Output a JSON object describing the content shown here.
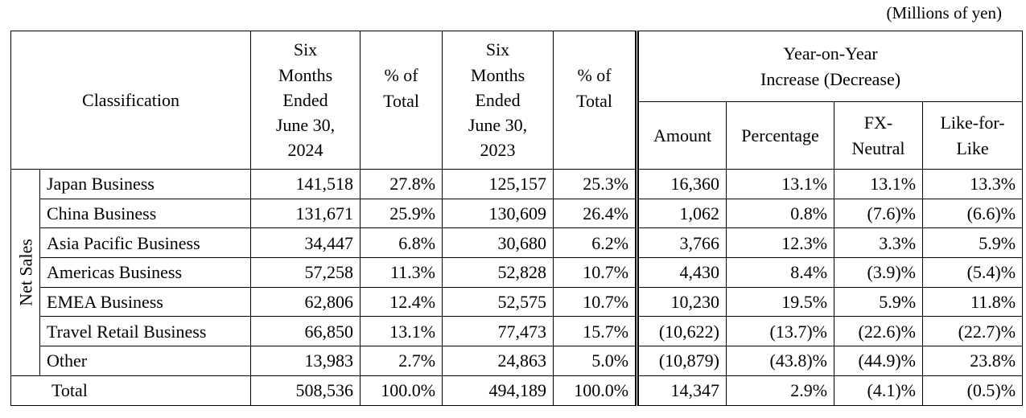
{
  "units": "(Millions of yen)",
  "header": {
    "classification": "Classification",
    "period_current": "Six Months Ended June 30, 2024",
    "period_current_lines": [
      "Six",
      "Months",
      "Ended",
      "June 30,",
      "2024"
    ],
    "pct_total_lines": [
      "% of",
      "Total"
    ],
    "period_prior_lines": [
      "Six",
      "Months",
      "Ended",
      "June 30,",
      "2023"
    ],
    "yoy_lines": [
      "Year-on-Year",
      "Increase (Decrease)"
    ],
    "amount": "Amount",
    "percentage": "Percentage",
    "fx_neutral_lines": [
      "FX-",
      "Neutral"
    ],
    "like_for_like_lines": [
      "Like-for-",
      "Like"
    ]
  },
  "group_label": "Net Sales",
  "rows": [
    {
      "name": "Japan Business",
      "cur": "141,518",
      "cur_pct": "27.8%",
      "prior": "125,157",
      "prior_pct": "25.3%",
      "amount": "16,360",
      "percentage": "13.1%",
      "fx": "13.1%",
      "lfl": "13.3%"
    },
    {
      "name": "China Business",
      "cur": "131,671",
      "cur_pct": "25.9%",
      "prior": "130,609",
      "prior_pct": "26.4%",
      "amount": "1,062",
      "percentage": "0.8%",
      "fx": "(7.6)%",
      "lfl": "(6.6)%"
    },
    {
      "name": "Asia Pacific Business",
      "cur": "34,447",
      "cur_pct": "6.8%",
      "prior": "30,680",
      "prior_pct": "6.2%",
      "amount": "3,766",
      "percentage": "12.3%",
      "fx": "3.3%",
      "lfl": "5.9%"
    },
    {
      "name": "Americas Business",
      "cur": "57,258",
      "cur_pct": "11.3%",
      "prior": "52,828",
      "prior_pct": "10.7%",
      "amount": "4,430",
      "percentage": "8.4%",
      "fx": "(3.9)%",
      "lfl": "(5.4)%"
    },
    {
      "name": "EMEA Business",
      "cur": "62,806",
      "cur_pct": "12.4%",
      "prior": "52,575",
      "prior_pct": "10.7%",
      "amount": "10,230",
      "percentage": "19.5%",
      "fx": "5.9%",
      "lfl": "11.8%"
    },
    {
      "name": "Travel Retail Business",
      "cur": "66,850",
      "cur_pct": "13.1%",
      "prior": "77,473",
      "prior_pct": "15.7%",
      "amount": "(10,622)",
      "percentage": "(13.7)%",
      "fx": "(22.6)%",
      "lfl": "(22.7)%"
    },
    {
      "name": "Other",
      "cur": "13,983",
      "cur_pct": "2.7%",
      "prior": "24,863",
      "prior_pct": "5.0%",
      "amount": "(10,879)",
      "percentage": "(43.8)%",
      "fx": "(44.9)%",
      "lfl": "23.8%"
    }
  ],
  "total": {
    "name": "Total",
    "cur": "508,536",
    "cur_pct": "100.0%",
    "prior": "494,189",
    "prior_pct": "100.0%",
    "amount": "14,347",
    "percentage": "2.9%",
    "fx": "(4.1)%",
    "lfl": "(0.5)%"
  }
}
